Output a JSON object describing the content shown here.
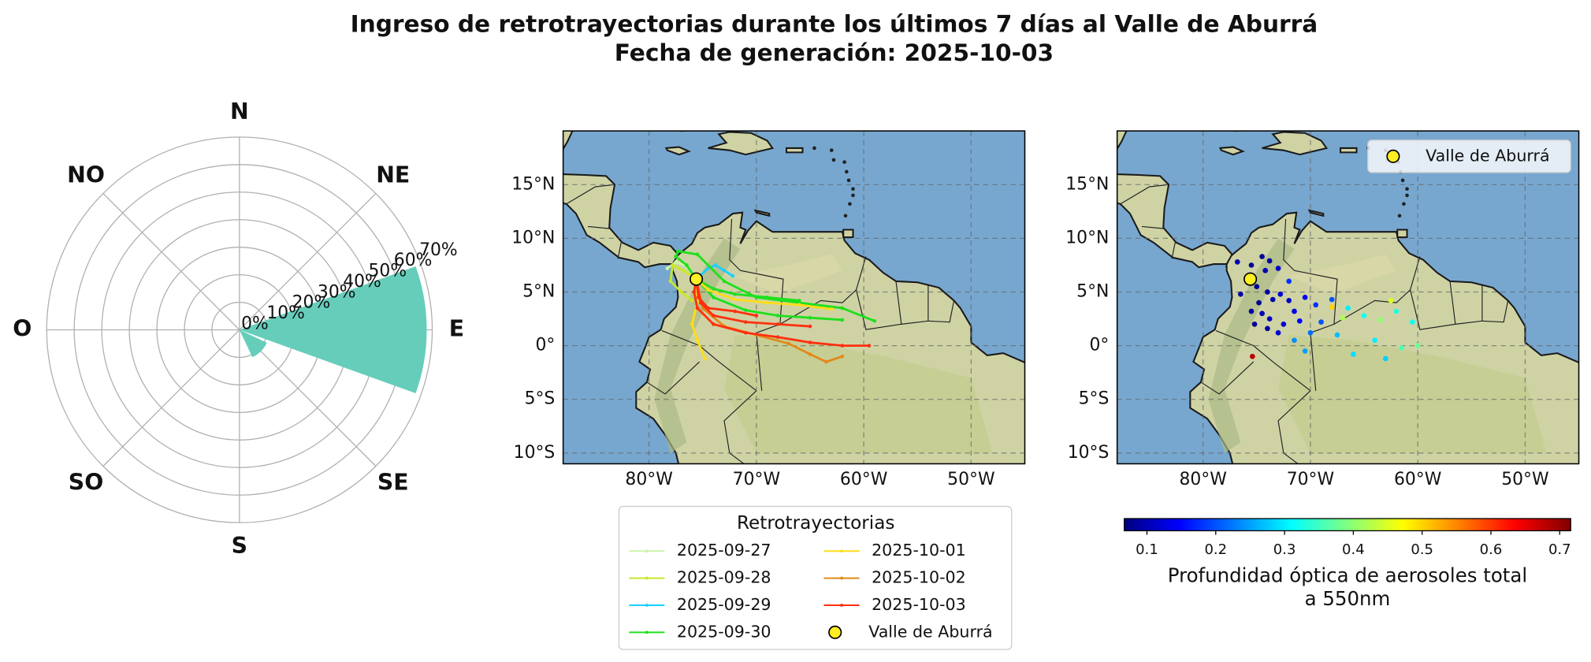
{
  "title": [
    "Ingreso de retrotrayectorias durante los últimos 7 días al Valle de Aburrá",
    "Fecha de generación: 2025-10-03"
  ],
  "chart_data": [
    {
      "type": "polar_bar",
      "categories": [
        "N",
        "NE",
        "E",
        "SE",
        "S",
        "SO",
        "O",
        "NO"
      ],
      "values": [
        0,
        0,
        68,
        11,
        0,
        0,
        0,
        0
      ],
      "color": "#66cdbb",
      "rlim": [
        0,
        70
      ],
      "rticks": [
        {
          "value": 0,
          "label": "0%"
        },
        {
          "value": 10,
          "label": "10%"
        },
        {
          "value": 20,
          "label": "20%"
        },
        {
          "value": 30,
          "label": "30%"
        },
        {
          "value": 40,
          "label": "40%"
        },
        {
          "value": 50,
          "label": "50%"
        },
        {
          "value": 60,
          "label": "60%"
        },
        {
          "value": 70,
          "label": "70%"
        }
      ],
      "grid": true
    },
    {
      "type": "trajectory_map",
      "xlim": [
        -88,
        -45
      ],
      "ylim": [
        -11,
        20
      ],
      "xticks": [
        {
          "value": -80,
          "label": "80°W"
        },
        {
          "value": -70,
          "label": "70°W"
        },
        {
          "value": -60,
          "label": "60°W"
        },
        {
          "value": -50,
          "label": "50°W"
        }
      ],
      "yticks": [
        {
          "value": 15,
          "label": "15°N"
        },
        {
          "value": 10,
          "label": "10°N"
        },
        {
          "value": 5,
          "label": "5°N"
        },
        {
          "value": 0,
          "label": "0°"
        },
        {
          "value": -5,
          "label": "5°S"
        },
        {
          "value": -10,
          "label": "10°S"
        }
      ],
      "grid": true,
      "legend_title": "Retrotrayectorias",
      "legend": "lower center",
      "series": [
        {
          "name": "2025-09-27",
          "color": "#ccf5aa",
          "trajectories": [
            {
              "x": [
                -75.6,
                -76.5,
                -77.5,
                -78.3
              ],
              "y": [
                6.2,
                7.4,
                7.8,
                7.2
              ]
            }
          ]
        },
        {
          "name": "2025-09-28",
          "color": "#c8e82a",
          "trajectories": [
            {
              "x": [
                -75.6,
                -76.8,
                -77.8,
                -78,
                -77,
                -76
              ],
              "y": [
                6.2,
                7,
                7.5,
                6,
                5,
                4.2
              ]
            }
          ]
        },
        {
          "name": "2025-09-29",
          "color": "#1ad0ff",
          "trajectories": [
            {
              "x": [
                -75.6,
                -74.5,
                -73.8,
                -73,
                -72.2
              ],
              "y": [
                6.2,
                7.2,
                7.5,
                7,
                6.5
              ]
            }
          ]
        },
        {
          "name": "2025-09-30",
          "color": "#1ee01e",
          "trajectories": [
            {
              "x": [
                -75.6,
                -76.5,
                -77.5,
                -77.3,
                -75.5,
                -73,
                -70,
                -66,
                -62,
                -59
              ],
              "y": [
                6.2,
                7.5,
                8.3,
                8.8,
                8.5,
                6,
                4.5,
                4,
                3.5,
                2.3
              ]
            },
            {
              "x": [
                -75.6,
                -74,
                -71,
                -68,
                -65,
                -62
              ],
              "y": [
                6.2,
                4.5,
                3.3,
                2.8,
                2.6,
                2.4
              ]
            },
            {
              "x": [
                -75.6,
                -74,
                -72,
                -69,
                -66
              ],
              "y": [
                6.2,
                5.3,
                4.8,
                4.5,
                4.2
              ]
            }
          ]
        },
        {
          "name": "2025-10-01",
          "color": "#ffdd1a",
          "trajectories": [
            {
              "x": [
                -75.6,
                -74.5,
                -72,
                -69,
                -66,
                -63
              ],
              "y": [
                6.2,
                5.2,
                4.3,
                4,
                3.8,
                3.4
              ]
            },
            {
              "x": [
                -75.6,
                -75.5,
                -76,
                -75.5,
                -74.8
              ],
              "y": [
                6.2,
                4,
                2,
                0.5,
                -1.2
              ]
            }
          ]
        },
        {
          "name": "2025-10-02",
          "color": "#e08a1a",
          "trajectories": [
            {
              "x": [
                -75.6,
                -75,
                -73,
                -70,
                -67,
                -65,
                -63.5,
                -62
              ],
              "y": [
                6.2,
                3.5,
                1.8,
                1,
                0.2,
                -0.8,
                -1.5,
                -1
              ]
            }
          ]
        },
        {
          "name": "2025-10-03",
          "color": "#ff3010",
          "trajectories": [
            {
              "x": [
                -75.6,
                -75.8,
                -75.5,
                -74,
                -71,
                -68,
                -65,
                -62,
                -59.5
              ],
              "y": [
                6.2,
                5,
                3.5,
                2,
                1.2,
                0.8,
                0.3,
                0,
                0
              ]
            },
            {
              "x": [
                -75.6,
                -75.2,
                -74,
                -71,
                -68,
                -65
              ],
              "y": [
                6.2,
                4,
                2.8,
                2.2,
                2,
                1.8
              ]
            },
            {
              "x": [
                -75.6,
                -75.4,
                -74.5,
                -72,
                -70
              ],
              "y": [
                6.2,
                4.5,
                3.5,
                3.2,
                2.8
              ]
            }
          ]
        }
      ],
      "marker": {
        "name": "Valle de Aburrá",
        "x": -75.6,
        "y": 6.2,
        "color": "#ffee22"
      }
    },
    {
      "type": "aod_map",
      "xlim": [
        -88,
        -45
      ],
      "ylim": [
        -11,
        20
      ],
      "xticks": [
        {
          "value": -80,
          "label": "80°W"
        },
        {
          "value": -70,
          "label": "70°W"
        },
        {
          "value": -60,
          "label": "60°W"
        },
        {
          "value": -50,
          "label": "50°W"
        }
      ],
      "yticks": [
        {
          "value": 15,
          "label": "15°N"
        },
        {
          "value": 10,
          "label": "10°N"
        },
        {
          "value": 5,
          "label": "5°N"
        },
        {
          "value": 0,
          "label": "0°"
        },
        {
          "value": -5,
          "label": "5°S"
        },
        {
          "value": -10,
          "label": "10°S"
        }
      ],
      "grid": true,
      "legend": "upper right",
      "points": {
        "x": [
          -74.5,
          -73.8,
          -74.2,
          -73,
          -75,
          -74,
          -73.5,
          -72.8,
          -74.8,
          -75.5,
          -74.5,
          -73.8,
          -75.2,
          -74,
          -72.5,
          -71.5,
          -72,
          -70.5,
          -71,
          -73,
          -76.5,
          -76.8,
          -75.5,
          -69.5,
          -69,
          -70,
          -68,
          -71.5,
          -70.5,
          -72,
          -66.5,
          -65,
          -64,
          -66,
          -63,
          -62,
          -60.5,
          -67.5,
          -67,
          -68,
          -62.5,
          -63.5,
          -60,
          -61.5,
          -75.4
        ],
        "y": [
          8.3,
          7.9,
          7,
          7.2,
          5.5,
          5,
          4.3,
          4.8,
          4,
          3.2,
          3,
          2.5,
          2,
          1.6,
          2,
          3.2,
          4.2,
          4.5,
          2.3,
          1.2,
          4.8,
          7.8,
          7.5,
          3.8,
          2.2,
          1.2,
          4.3,
          0.5,
          -0.5,
          6,
          3.5,
          2.8,
          0.5,
          -0.8,
          -1.2,
          3.2,
          2.2,
          1,
          2.6,
          3.6,
          4.2,
          2.4,
          0,
          -0.2,
          -1
        ],
        "values": [
          0.08,
          0.09,
          0.1,
          0.11,
          0.08,
          0.09,
          0.1,
          0.12,
          0.08,
          0.09,
          0.1,
          0.11,
          0.08,
          0.09,
          0.12,
          0.13,
          0.11,
          0.14,
          0.15,
          0.12,
          0.09,
          0.1,
          0.08,
          0.18,
          0.2,
          0.22,
          0.2,
          0.24,
          0.25,
          0.18,
          0.3,
          0.32,
          0.3,
          0.29,
          0.28,
          0.33,
          0.32,
          0.27,
          0.42,
          0.5,
          0.45,
          0.4,
          0.38,
          0.36,
          0.68
        ]
      },
      "colormap": "jet",
      "clim": [
        0.067,
        0.716
      ],
      "cticks": [
        0.1,
        0.2,
        0.3,
        0.4,
        0.5,
        0.6,
        0.7
      ],
      "colorbar_label": [
        "Profundidad óptica de aerosoles total",
        "a 550nm"
      ],
      "marker": {
        "name": "Valle de Aburrá",
        "x": -75.6,
        "y": 6.2,
        "color": "#ffee22"
      }
    }
  ]
}
